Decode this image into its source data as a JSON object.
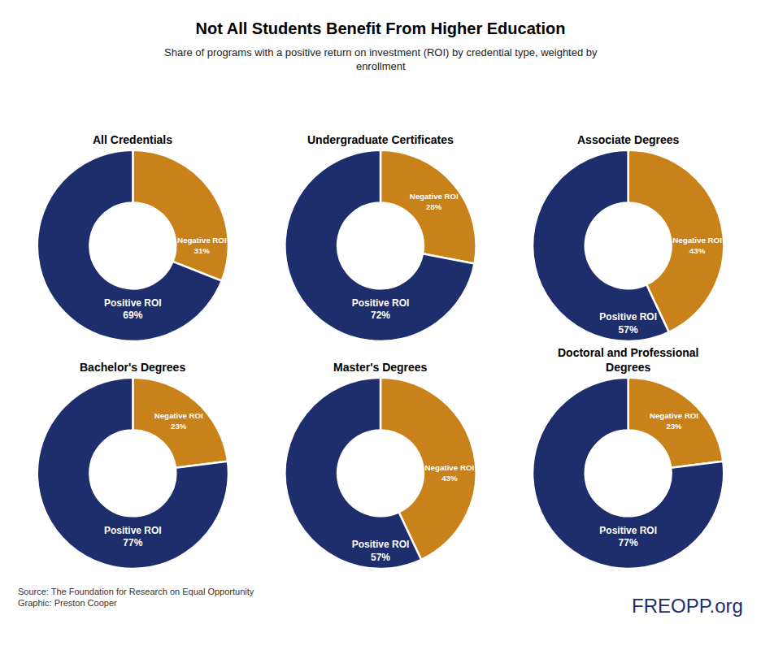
{
  "title": "Not All Students Benefit From Higher Education",
  "subtitle": "Share of programs with a positive return on investment (ROI) by credential type, weighted by\nenrollment",
  "annotations": [
    "Source: The Foundation for Research on Equal Opportunity\nGraphic: Preston Cooper",
    "FREOPP.org"
  ],
  "chart_data": [
    {
      "type": "pie",
      "title": "All Credentials",
      "categories": [
        "Negative ROI",
        "Positive ROI"
      ],
      "values": [
        31,
        69
      ],
      "value_labels": [
        "31%",
        "69%"
      ],
      "colors": [
        "#c9821a",
        "#1e2d6b"
      ],
      "data_labels": true
    },
    {
      "type": "pie",
      "title": "Undergraduate Certificates",
      "categories": [
        "Negative ROI",
        "Positive ROI"
      ],
      "values": [
        28,
        72
      ],
      "value_labels": [
        "28%",
        "72%"
      ],
      "colors": [
        "#c9821a",
        "#1e2d6b"
      ],
      "data_labels": true
    },
    {
      "type": "pie",
      "title": "Associate Degrees",
      "categories": [
        "Negative ROI",
        "Positive ROI"
      ],
      "values": [
        43,
        57
      ],
      "value_labels": [
        "43%",
        "57%"
      ],
      "colors": [
        "#c9821a",
        "#1e2d6b"
      ],
      "data_labels": true
    },
    {
      "type": "pie",
      "title": "Bachelor's Degrees",
      "categories": [
        "Negative ROI",
        "Positive ROI"
      ],
      "values": [
        23,
        77
      ],
      "value_labels": [
        "23%",
        "77%"
      ],
      "colors": [
        "#c9821a",
        "#1e2d6b"
      ],
      "data_labels": true
    },
    {
      "type": "pie",
      "title": "Master's Degrees",
      "categories": [
        "Negative ROI",
        "Positive ROI"
      ],
      "values": [
        43,
        57
      ],
      "value_labels": [
        "43%",
        "57%"
      ],
      "colors": [
        "#c9821a",
        "#1e2d6b"
      ],
      "data_labels": true
    },
    {
      "type": "pie",
      "title": "Doctoral and Professional\nDegrees",
      "categories": [
        "Negative ROI",
        "Positive ROI"
      ],
      "values": [
        23,
        77
      ],
      "value_labels": [
        "23%",
        "77%"
      ],
      "colors": [
        "#c9821a",
        "#1e2d6b"
      ],
      "data_labels": true
    }
  ]
}
